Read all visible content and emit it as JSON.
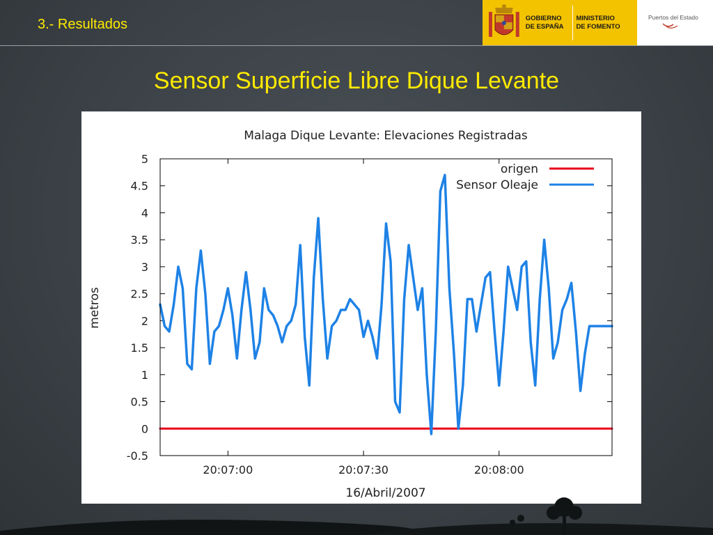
{
  "header": {
    "section": "3.- Resultados",
    "logos": {
      "gobierno_line1": "GOBIERNO",
      "gobierno_line2": "DE ESPAÑA",
      "ministerio_line1": "MINISTERIO",
      "ministerio_line2": "DE FOMENTO",
      "puertos": "Puertos del Estado"
    }
  },
  "slide_title": "Sensor Superficie Libre Dique Levante",
  "colors": {
    "title_yellow": "#ffea00",
    "origen_red": "#e8001a",
    "sensor_blue": "#1e82e6",
    "gob_yellow": "#f3c300"
  },
  "chart_data": {
    "type": "line",
    "title": "Malaga Dique Levante: Elevaciones Registradas",
    "xlabel": "16/Abril/2007",
    "ylabel": "metros",
    "xlim": [
      "20:06:45",
      "20:08:25"
    ],
    "ylim": [
      -0.5,
      5
    ],
    "x_ticks": [
      {
        "t": "20:07:00",
        "label": "20:07:00"
      },
      {
        "t": "20:07:30",
        "label": "20:07:30"
      },
      {
        "t": "20:08:00",
        "label": "20:08:00"
      }
    ],
    "y_ticks": [
      {
        "v": 5,
        "label": "5"
      },
      {
        "v": 4.5,
        "label": "4.5"
      },
      {
        "v": 4,
        "label": "4"
      },
      {
        "v": 3.5,
        "label": "3.5"
      },
      {
        "v": 3,
        "label": "3"
      },
      {
        "v": 2.5,
        "label": "2.5"
      },
      {
        "v": 2,
        "label": "2"
      },
      {
        "v": 1.5,
        "label": "1.5"
      },
      {
        "v": 1,
        "label": "1"
      },
      {
        "v": 0.5,
        "label": "0.5"
      },
      {
        "v": 0,
        "label": "0"
      },
      {
        "v": -0.5,
        "label": "-0.5"
      }
    ],
    "grid": false,
    "legend_position": "top-right",
    "series": [
      {
        "name": "origen",
        "color": "#e8001a",
        "x": [
          "20:06:45",
          "20:08:25"
        ],
        "y": [
          0,
          0
        ]
      },
      {
        "name": "Sensor Oleaje",
        "color": "#1e82e6",
        "x": [
          "20:06:45",
          "20:06:46",
          "20:06:47",
          "20:06:48",
          "20:06:49",
          "20:06:50",
          "20:06:51",
          "20:06:52",
          "20:06:53",
          "20:06:54",
          "20:06:55",
          "20:06:56",
          "20:06:57",
          "20:06:58",
          "20:06:59",
          "20:07:00",
          "20:07:01",
          "20:07:02",
          "20:07:03",
          "20:07:04",
          "20:07:05",
          "20:07:06",
          "20:07:07",
          "20:07:08",
          "20:07:09",
          "20:07:10",
          "20:07:11",
          "20:07:12",
          "20:07:13",
          "20:07:14",
          "20:07:15",
          "20:07:16",
          "20:07:17",
          "20:07:18",
          "20:07:19",
          "20:07:20",
          "20:07:21",
          "20:07:22",
          "20:07:23",
          "20:07:24",
          "20:07:25",
          "20:07:26",
          "20:07:27",
          "20:07:28",
          "20:07:29",
          "20:07:30",
          "20:07:31",
          "20:07:32",
          "20:07:33",
          "20:07:34",
          "20:07:35",
          "20:07:36",
          "20:07:37",
          "20:07:38",
          "20:07:39",
          "20:07:40",
          "20:07:41",
          "20:07:42",
          "20:07:43",
          "20:07:44",
          "20:07:45",
          "20:07:46",
          "20:07:47",
          "20:07:48",
          "20:07:49",
          "20:07:50",
          "20:07:51",
          "20:07:52",
          "20:07:53",
          "20:07:54",
          "20:07:55",
          "20:07:56",
          "20:07:57",
          "20:07:58",
          "20:07:59",
          "20:08:00",
          "20:08:01",
          "20:08:02",
          "20:08:03",
          "20:08:04",
          "20:08:05",
          "20:08:06",
          "20:08:07",
          "20:08:08",
          "20:08:09",
          "20:08:10",
          "20:08:11",
          "20:08:12",
          "20:08:13",
          "20:08:14",
          "20:08:15",
          "20:08:16",
          "20:08:17",
          "20:08:18",
          "20:08:19",
          "20:08:20",
          "20:08:21",
          "20:08:22",
          "20:08:23",
          "20:08:24",
          "20:08:25"
        ],
        "y": [
          2.3,
          1.9,
          1.8,
          2.3,
          3.0,
          2.6,
          1.2,
          1.1,
          2.6,
          3.3,
          2.5,
          1.2,
          1.8,
          1.9,
          2.2,
          2.6,
          2.1,
          1.3,
          2.2,
          2.9,
          2.2,
          1.3,
          1.6,
          2.6,
          2.2,
          2.1,
          1.9,
          1.6,
          1.9,
          2.0,
          2.3,
          3.4,
          1.7,
          0.8,
          2.8,
          3.9,
          2.4,
          1.3,
          1.9,
          2.0,
          2.2,
          2.2,
          2.4,
          2.3,
          2.2,
          1.7,
          2.0,
          1.7,
          1.3,
          2.3,
          3.8,
          3.1,
          0.5,
          0.3,
          2.4,
          3.4,
          2.8,
          2.2,
          2.6,
          1.0,
          -0.1,
          1.8,
          4.4,
          4.7,
          2.6,
          1.4,
          0.0,
          0.8,
          2.4,
          2.4,
          1.8,
          2.3,
          2.8,
          2.9,
          1.8,
          0.8,
          1.8,
          3.0,
          2.6,
          2.2,
          3.0,
          3.1,
          1.6,
          0.8,
          2.4,
          3.5,
          2.6,
          1.3,
          1.6,
          2.2,
          2.4,
          2.7,
          1.8,
          0.7,
          1.4,
          1.9,
          1.9,
          1.9,
          1.9,
          1.9,
          1.9
        ]
      }
    ]
  }
}
